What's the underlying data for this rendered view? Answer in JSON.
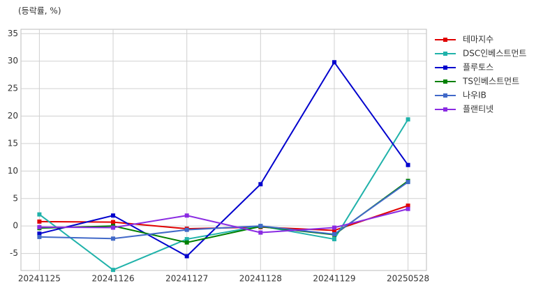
{
  "chart_data": {
    "type": "line",
    "y_label": "(등락률, %)",
    "categories": [
      "20241125",
      "20241126",
      "20241127",
      "20241128",
      "20241129",
      "20250528"
    ],
    "series": [
      {
        "name": "테마지수",
        "color": "#e00000",
        "values": [
          0.8,
          0.7,
          -0.5,
          -0.2,
          -0.8,
          3.7
        ]
      },
      {
        "name": "DSC인베스트먼트",
        "color": "#20b2aa",
        "values": [
          2.1,
          -8.0,
          -2.4,
          0.0,
          -2.4,
          19.4
        ]
      },
      {
        "name": "플루토스",
        "color": "#0000cd",
        "values": [
          -1.4,
          1.9,
          -5.5,
          7.6,
          29.8,
          11.1
        ]
      },
      {
        "name": "TS인베스트먼트",
        "color": "#008000",
        "values": [
          -0.4,
          0.0,
          -3.0,
          -0.1,
          -1.6,
          8.2
        ]
      },
      {
        "name": "나우IB",
        "color": "#4169c8",
        "values": [
          -2.0,
          -2.3,
          -0.7,
          0.0,
          -1.5,
          8.0
        ]
      },
      {
        "name": "플랜티넷",
        "color": "#8a2be2",
        "values": [
          -0.2,
          -0.3,
          1.9,
          -1.2,
          -0.3,
          3.1
        ]
      }
    ],
    "ylim": [
      -8.1,
      35.8
    ],
    "yticks": [
      -5,
      0,
      5,
      10,
      15,
      20,
      25,
      30,
      35
    ],
    "grid": true,
    "legend": "right"
  }
}
